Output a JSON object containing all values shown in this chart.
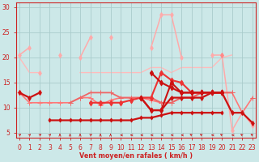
{
  "bg_color": "#cce8e8",
  "grid_color": "#aacccc",
  "xlabel": "Vent moyen/en rafales ( km/h )",
  "xlim": [
    -0.3,
    23.3
  ],
  "ylim": [
    4.0,
    31.0
  ],
  "yticks": [
    5,
    10,
    15,
    20,
    25,
    30
  ],
  "xticks": [
    0,
    1,
    2,
    3,
    4,
    5,
    6,
    7,
    8,
    9,
    10,
    11,
    12,
    13,
    14,
    15,
    16,
    17,
    18,
    19,
    20,
    21,
    22,
    23
  ],
  "series": [
    {
      "y": [
        20.5,
        22,
        null,
        null,
        20.5,
        null,
        20,
        24,
        null,
        24,
        null,
        null,
        null,
        22,
        28.5,
        28.5,
        20,
        null,
        null,
        20.5,
        20.5,
        null,
        null,
        null
      ],
      "color": "#ffaaaa",
      "lw": 1.1,
      "marker": "d",
      "ms": 3.0,
      "zorder": 2
    },
    {
      "y": [
        null,
        null,
        17,
        null,
        null,
        null,
        null,
        null,
        null,
        null,
        null,
        null,
        null,
        null,
        null,
        null,
        null,
        null,
        null,
        null,
        null,
        null,
        null,
        null
      ],
      "color": "#ffaaaa",
      "lw": 1.1,
      "marker": "d",
      "ms": 3.0,
      "zorder": 2
    },
    {
      "y": [
        20,
        17,
        17,
        null,
        17,
        null,
        17,
        17,
        17,
        17,
        17,
        17,
        17,
        18,
        18,
        17,
        18,
        18,
        18,
        18,
        20,
        20.5,
        null,
        null
      ],
      "color": "#ffbbbb",
      "lw": 1.0,
      "marker": null,
      "ms": 0,
      "zorder": 1
    },
    {
      "y": [
        13,
        null,
        13,
        null,
        null,
        null,
        null,
        null,
        null,
        null,
        null,
        null,
        null,
        null,
        null,
        null,
        null,
        null,
        null,
        null,
        null,
        null,
        null,
        null
      ],
      "color": "#ff8888",
      "lw": 1.2,
      "marker": "d",
      "ms": 3.0,
      "zorder": 3
    },
    {
      "y": [
        null,
        null,
        null,
        null,
        null,
        null,
        null,
        null,
        null,
        null,
        null,
        null,
        null,
        null,
        null,
        null,
        null,
        null,
        null,
        null,
        20.5,
        null,
        null,
        null
      ],
      "color": "#ff8888",
      "lw": 1.2,
      "marker": "d",
      "ms": 3.0,
      "zorder": 3
    },
    {
      "y": [
        13,
        11,
        11,
        11,
        11,
        11,
        12,
        12,
        10.5,
        11.5,
        12,
        12,
        12,
        11.5,
        11,
        11,
        12,
        12,
        13,
        13,
        13,
        13,
        9,
        12
      ],
      "color": "#ff7777",
      "lw": 1.2,
      "marker": "+",
      "ms": 4.5,
      "zorder": 3
    },
    {
      "y": [
        null,
        null,
        null,
        null,
        null,
        null,
        null,
        11,
        11,
        11,
        11,
        11.5,
        12,
        12,
        17,
        15.5,
        15,
        13,
        13,
        13,
        13,
        null,
        null,
        null
      ],
      "color": "#ee3333",
      "lw": 1.5,
      "marker": "d",
      "ms": 3.5,
      "zorder": 5
    },
    {
      "y": [
        null,
        null,
        null,
        null,
        null,
        null,
        null,
        null,
        null,
        null,
        null,
        null,
        null,
        17,
        15,
        14,
        13,
        13,
        13,
        13,
        13,
        null,
        null,
        null
      ],
      "color": "#cc1111",
      "lw": 1.5,
      "marker": "d",
      "ms": 3.5,
      "zorder": 5
    },
    {
      "y": [
        null,
        null,
        null,
        null,
        null,
        null,
        null,
        null,
        null,
        null,
        null,
        null,
        12,
        9.5,
        9.5,
        15,
        13,
        13,
        13,
        13,
        13,
        null,
        null,
        null
      ],
      "color": "#cc1111",
      "lw": 1.5,
      "marker": "d",
      "ms": 3.5,
      "zorder": 5
    },
    {
      "y": [
        null,
        null,
        null,
        7.5,
        7.5,
        7.5,
        7.5,
        7.5,
        7.5,
        7.5,
        7.5,
        7.5,
        8,
        8,
        8.5,
        9,
        9,
        9,
        9,
        9,
        9,
        null,
        null,
        null
      ],
      "color": "#cc1111",
      "lw": 1.6,
      "marker": "d",
      "ms": 2.5,
      "zorder": 4
    },
    {
      "y": [
        13,
        12,
        13,
        null,
        null,
        null,
        null,
        null,
        null,
        null,
        null,
        null,
        null,
        null,
        null,
        null,
        null,
        null,
        null,
        null,
        null,
        null,
        null,
        null
      ],
      "color": "#cc1111",
      "lw": 1.6,
      "marker": "d",
      "ms": 3.0,
      "zorder": 4
    },
    {
      "y": [
        null,
        null,
        null,
        null,
        null,
        null,
        null,
        null,
        null,
        null,
        null,
        null,
        12,
        9.5,
        9.5,
        12,
        12,
        12,
        12,
        13,
        13,
        9,
        9,
        7
      ],
      "color": "#cc1111",
      "lw": 1.6,
      "marker": "d",
      "ms": 3.0,
      "zorder": 4
    },
    {
      "y": [
        null,
        null,
        null,
        null,
        null,
        null,
        null,
        null,
        null,
        null,
        null,
        null,
        null,
        null,
        null,
        null,
        null,
        null,
        null,
        null,
        20.5,
        5.5,
        9,
        6.5
      ],
      "color": "#ffaaaa",
      "lw": 1.1,
      "marker": "d",
      "ms": 3.0,
      "zorder": 2
    },
    {
      "y": [
        null,
        null,
        null,
        null,
        null,
        11,
        12,
        13,
        13,
        13,
        12,
        12,
        12,
        12,
        11,
        11,
        12,
        12,
        13,
        13,
        13,
        13,
        null,
        12
      ],
      "color": "#ee6666",
      "lw": 1.3,
      "marker": "+",
      "ms": 4.0,
      "zorder": 3
    }
  ],
  "wind_x": [
    0,
    1,
    2,
    3,
    4,
    5,
    6,
    7,
    8,
    9,
    10,
    11,
    12,
    13,
    14,
    15,
    16,
    17,
    18,
    19,
    20,
    21,
    22,
    23
  ],
  "wind_angles_deg": [
    45,
    30,
    45,
    30,
    0,
    0,
    0,
    45,
    0,
    0,
    270,
    270,
    270,
    270,
    270,
    270,
    270,
    315,
    315,
    270,
    315,
    270,
    315,
    315
  ],
  "wind_color": "#cc2222",
  "xlabel_color": "#cc2222",
  "tick_color": "#cc2222"
}
